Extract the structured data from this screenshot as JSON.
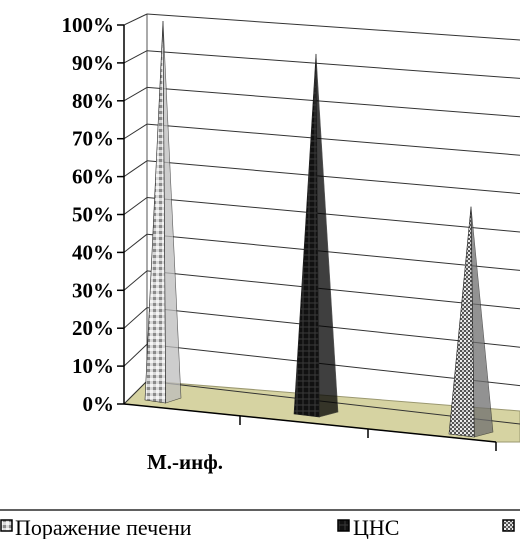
{
  "chart_data": {
    "type": "bar",
    "style": "3d-pyramid",
    "categories": [
      "М.-инф."
    ],
    "series": [
      {
        "name": "Поражение печени",
        "values": [
          100
        ]
      },
      {
        "name": "ЦНС",
        "values": [
          95
        ]
      },
      {
        "name": "",
        "values": [
          60
        ]
      }
    ],
    "ylim": [
      0,
      100
    ],
    "yticks": [
      "0%",
      "10%",
      "20%",
      "30%",
      "40%",
      "50%",
      "60%",
      "70%",
      "80%",
      "90%",
      "100%"
    ],
    "grid": true,
    "legend_position": "bottom",
    "colors": {
      "floor": "#d6d3a2",
      "series1": "#c8c8c8",
      "series2": "#1a1a1a",
      "series3": "#9a9a9a"
    }
  }
}
